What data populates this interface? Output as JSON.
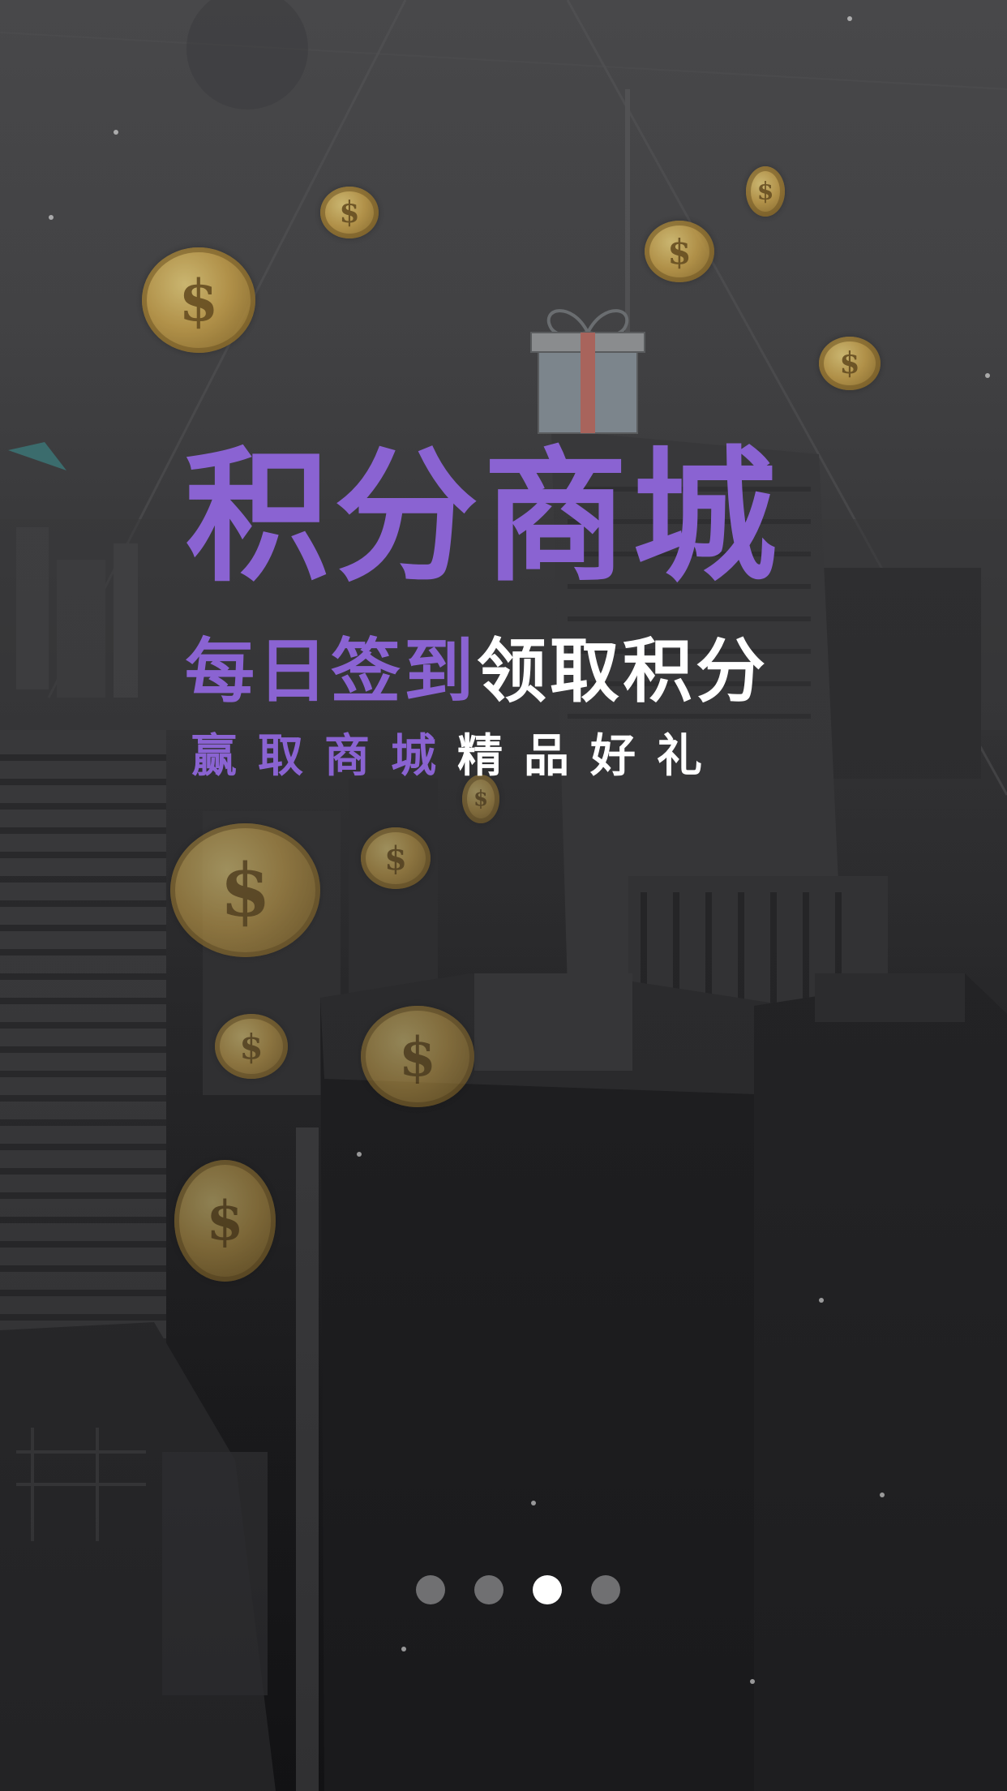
{
  "banner": {
    "title": "积分商城",
    "subtitle_purple": "每日签到",
    "subtitle_white": "领取积分",
    "tagline_purple": "赢取商城",
    "tagline_white": "精品好礼"
  },
  "pager": {
    "total": 4,
    "active_index": 2
  },
  "colors": {
    "accent": "#8a63d2",
    "text_light": "#ffffff",
    "dot_inactive": "#707072",
    "dot_active": "#ffffff"
  },
  "icons": [
    "gift-icon",
    "coin-icon"
  ]
}
